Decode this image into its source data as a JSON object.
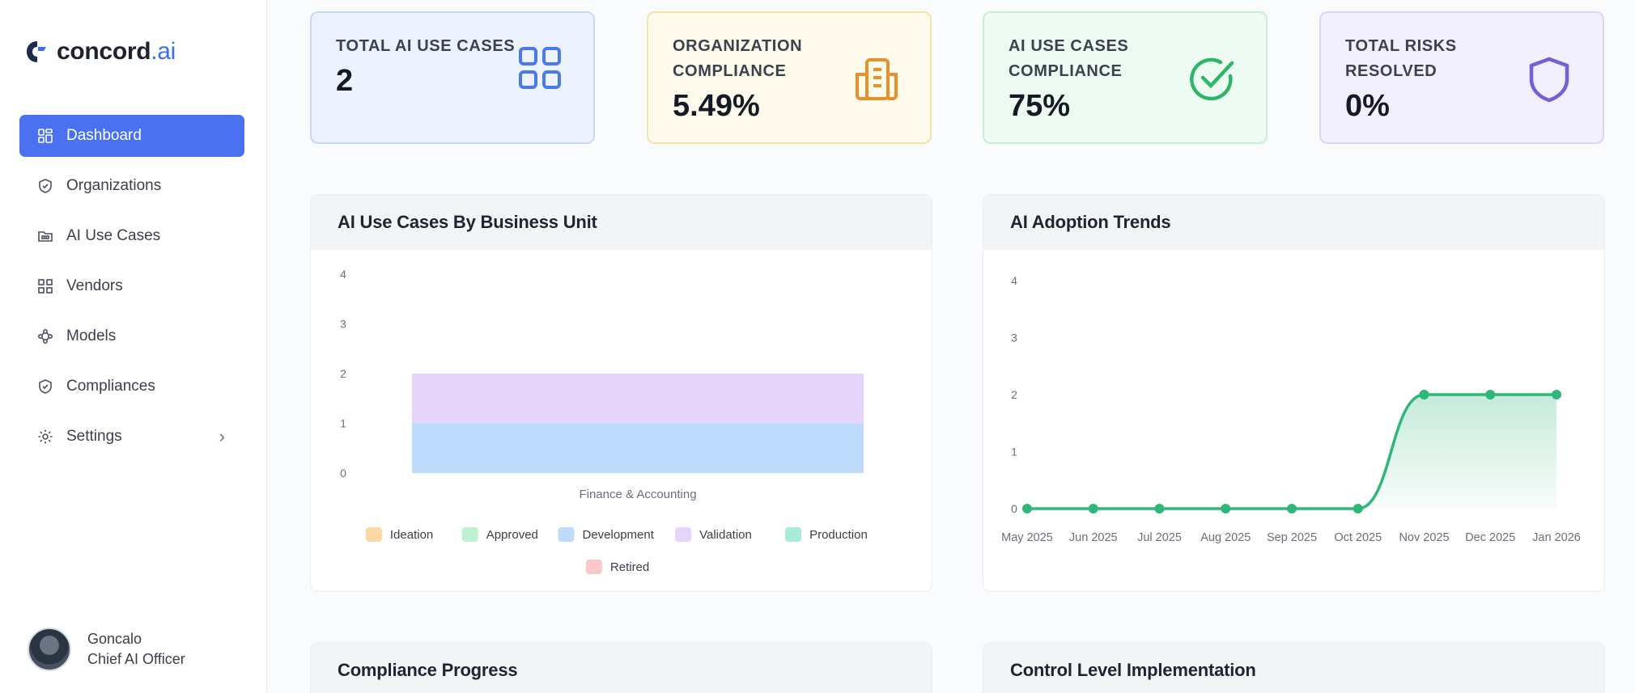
{
  "brand": {
    "name": "concord",
    "suffix": ".ai"
  },
  "sidebar": {
    "items": [
      {
        "label": "Dashboard",
        "icon": "dashboard-icon",
        "active": true
      },
      {
        "label": "Organizations",
        "icon": "shield-icon"
      },
      {
        "label": "AI Use Cases",
        "icon": "folder-icon"
      },
      {
        "label": "Vendors",
        "icon": "grid-icon"
      },
      {
        "label": "Models",
        "icon": "nodes-icon"
      },
      {
        "label": "Compliances",
        "icon": "shield-check-icon"
      },
      {
        "label": "Settings",
        "icon": "gear-icon",
        "has_submenu": true
      }
    ]
  },
  "user": {
    "name": "Goncalo",
    "role": "Chief AI Officer"
  },
  "kpis": [
    {
      "label": "TOTAL AI USE CASES",
      "value": "2",
      "icon": "grid-icon",
      "color": "#4a7ae8"
    },
    {
      "label": "ORGANIZATION COMPLIANCE",
      "value": "5.49%",
      "icon": "building-icon",
      "color": "#e8902a"
    },
    {
      "label": "AI USE CASES COMPLIANCE",
      "value": "75%",
      "icon": "check-circle-icon",
      "color": "#2fb56a"
    },
    {
      "label": "TOTAL RISKS RESOLVED",
      "value": "0%",
      "icon": "shield-icon",
      "color": "#6f63d6"
    }
  ],
  "panels": {
    "bu": {
      "title": "AI Use Cases By Business Unit"
    },
    "trend": {
      "title": "AI Adoption Trends"
    },
    "compliance": {
      "title": "Compliance Progress"
    },
    "control": {
      "title": "Control Level Implementation"
    }
  },
  "chart_data": [
    {
      "type": "bar",
      "stacked": true,
      "title": "AI Use Cases By Business Unit",
      "categories": [
        "Finance & Accounting"
      ],
      "ylim": [
        0,
        4
      ],
      "yticks": [
        0,
        1,
        2,
        3,
        4
      ],
      "grid": false,
      "legend_position": "bottom",
      "series": [
        {
          "name": "Ideation",
          "color": "#fcd9a4",
          "values": [
            0
          ]
        },
        {
          "name": "Approved",
          "color": "#bff0cf",
          "values": [
            0
          ]
        },
        {
          "name": "Development",
          "color": "#bfdbfb",
          "values": [
            1
          ]
        },
        {
          "name": "Validation",
          "color": "#e6d5fb",
          "values": [
            1
          ]
        },
        {
          "name": "Production",
          "color": "#a7ecd9",
          "values": [
            0
          ]
        },
        {
          "name": "Retired",
          "color": "#f9c8c8",
          "values": [
            0
          ]
        }
      ]
    },
    {
      "type": "area",
      "title": "AI Adoption Trends",
      "x": [
        "May 2025",
        "Jun 2025",
        "Jul 2025",
        "Aug 2025",
        "Sep 2025",
        "Oct 2025",
        "Nov 2025",
        "Dec 2025",
        "Jan 2026"
      ],
      "values": [
        0,
        0,
        0,
        0,
        0,
        0,
        2,
        2,
        2
      ],
      "ylim": [
        0,
        4
      ],
      "yticks": [
        0,
        1,
        2,
        3,
        4
      ],
      "grid": false,
      "color": "#2fb77a"
    }
  ]
}
